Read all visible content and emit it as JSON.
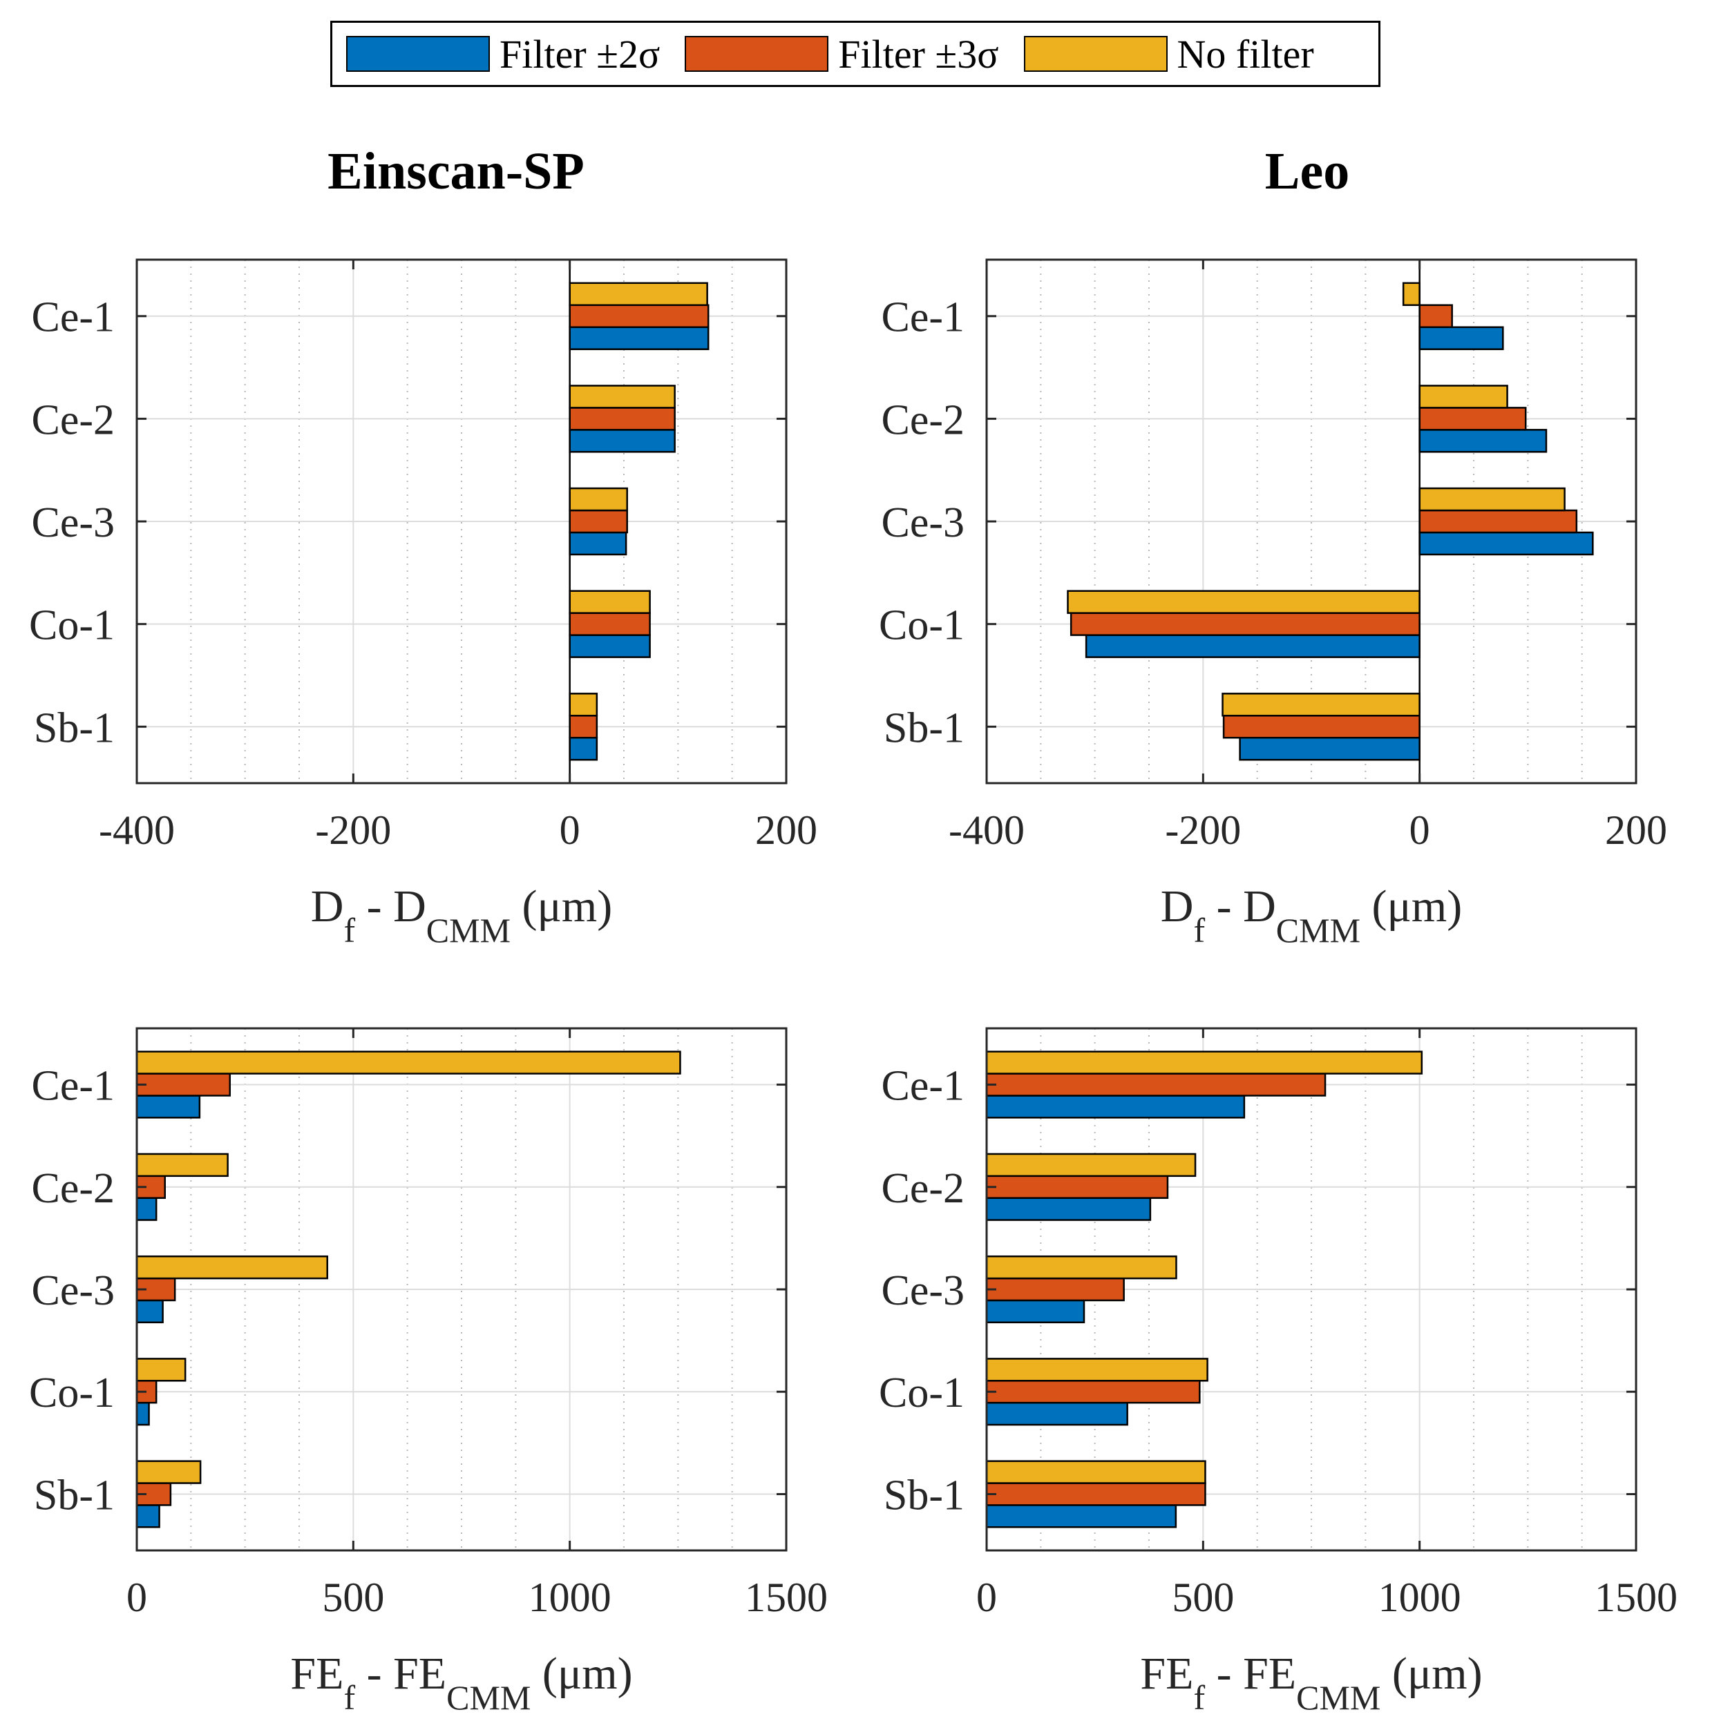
{
  "legend": {
    "items": [
      {
        "label": "Filter ±2σ",
        "color": "#0072BD"
      },
      {
        "label": "Filter ±3σ",
        "color": "#D95319"
      },
      {
        "label": "No filter",
        "color": "#EDB120"
      }
    ]
  },
  "titles": {
    "left": "Einscan-SP",
    "right": "Leo"
  },
  "chart_data": [
    {
      "type": "bar",
      "orientation": "horizontal",
      "title": "Einscan-SP",
      "xlabel_parts": [
        "D",
        "f",
        " - D",
        "CMM",
        " (μm)"
      ],
      "categories": [
        "Ce-1",
        "Ce-2",
        "Ce-3",
        "Co-1",
        "Sb-1"
      ],
      "xlim": [
        -400,
        200
      ],
      "xticks": [
        -400,
        -200,
        0,
        200
      ],
      "xtick_labels": [
        "-400",
        "-200",
        "0",
        "200"
      ],
      "grid": true,
      "series": [
        {
          "name": "Filter ±2σ",
          "values": [
            128,
            97,
            52,
            74,
            25
          ]
        },
        {
          "name": "Filter ±3σ",
          "values": [
            128,
            97,
            53,
            74,
            25
          ]
        },
        {
          "name": "No filter",
          "values": [
            127,
            97,
            53,
            74,
            25
          ]
        }
      ]
    },
    {
      "type": "bar",
      "orientation": "horizontal",
      "title": "Leo",
      "xlabel_parts": [
        "D",
        "f",
        " - D",
        "CMM",
        " (μm)"
      ],
      "categories": [
        "Ce-1",
        "Ce-2",
        "Ce-3",
        "Co-1",
        "Sb-1"
      ],
      "xlim": [
        -400,
        200
      ],
      "xticks": [
        -400,
        -200,
        0,
        200
      ],
      "xtick_labels": [
        "-400",
        "-200",
        "0",
        "200"
      ],
      "grid": true,
      "series": [
        {
          "name": "Filter ±2σ",
          "values": [
            77,
            117,
            160,
            -308,
            -166
          ]
        },
        {
          "name": "Filter ±3σ",
          "values": [
            30,
            98,
            145,
            -322,
            -181
          ]
        },
        {
          "name": "No filter",
          "values": [
            -15,
            81,
            134,
            -325,
            -182
          ]
        }
      ]
    },
    {
      "type": "bar",
      "orientation": "horizontal",
      "title": "",
      "xlabel_parts": [
        "FE",
        "f",
        " - FE",
        "CMM",
        " (μm)"
      ],
      "categories": [
        "Ce-1",
        "Ce-2",
        "Ce-3",
        "Co-1",
        "Sb-1"
      ],
      "xlim": [
        0,
        1500
      ],
      "xticks": [
        0,
        500,
        1000,
        1500
      ],
      "xtick_labels": [
        "0",
        "500",
        "1000",
        "1500"
      ],
      "grid": true,
      "series": [
        {
          "name": "Filter ±2σ",
          "values": [
            145,
            45,
            60,
            28,
            52
          ]
        },
        {
          "name": "Filter ±3σ",
          "values": [
            215,
            65,
            88,
            45,
            78
          ]
        },
        {
          "name": "No filter",
          "values": [
            1255,
            210,
            440,
            112,
            147
          ]
        }
      ]
    },
    {
      "type": "bar",
      "orientation": "horizontal",
      "title": "",
      "xlabel_parts": [
        "FE",
        "f",
        " - FE",
        "CMM",
        " (μm)"
      ],
      "categories": [
        "Ce-1",
        "Ce-2",
        "Ce-3",
        "Co-1",
        "Sb-1"
      ],
      "xlim": [
        0,
        1500
      ],
      "xticks": [
        0,
        500,
        1000,
        1500
      ],
      "xtick_labels": [
        "0",
        "500",
        "1000",
        "1500"
      ],
      "grid": true,
      "series": [
        {
          "name": "Filter ±2σ",
          "values": [
            595,
            378,
            225,
            325,
            437
          ]
        },
        {
          "name": "Filter ±3σ",
          "values": [
            782,
            418,
            317,
            492,
            505
          ]
        },
        {
          "name": "No filter",
          "values": [
            1005,
            482,
            438,
            510,
            505
          ]
        }
      ]
    }
  ]
}
